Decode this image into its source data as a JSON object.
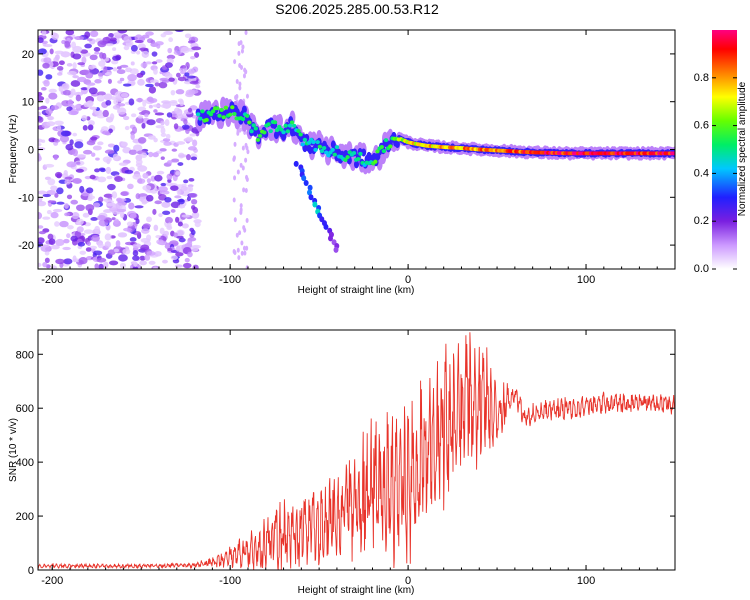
{
  "title": "S206.2025.285.00.53.R12",
  "chart_data": [
    {
      "type": "heatmap",
      "xlabel": "Height of straight line (km)",
      "ylabel": "Frequency (Hz)",
      "xlim": [
        -208,
        150
      ],
      "ylim": [
        -25,
        25
      ],
      "x_ticks": [
        "-200",
        "-100",
        "0",
        "100"
      ],
      "x_tick_values": [
        -200,
        -100,
        0,
        100
      ],
      "y_ticks": [
        "-20",
        "-10",
        "0",
        "10",
        "20"
      ],
      "y_tick_values": [
        -20,
        -10,
        0,
        10,
        20
      ],
      "colorbar": {
        "label": "Normalized spectral amplitude",
        "range": [
          0,
          1
        ],
        "ticks": [
          "0.0",
          "0.2",
          "0.4",
          "0.6",
          "0.8"
        ],
        "tick_values": [
          0,
          0.2,
          0.4,
          0.6,
          0.8
        ],
        "colors": [
          "#ffffff",
          "#cc99ff",
          "#7a1fe0",
          "#2020ff",
          "#00c8ff",
          "#00ee66",
          "#66ff00",
          "#ffff00",
          "#ff8000",
          "#ff0000",
          "#ff0080"
        ]
      },
      "ridge": [
        {
          "x": -118,
          "f": 7,
          "a": 0.5
        },
        {
          "x": -110,
          "f": 7.5,
          "a": 0.55
        },
        {
          "x": -100,
          "f": 8,
          "a": 0.55
        },
        {
          "x": -92,
          "f": 7,
          "a": 0.5
        },
        {
          "x": -85,
          "f": 3,
          "a": 0.55
        },
        {
          "x": -78,
          "f": 5,
          "a": 0.5
        },
        {
          "x": -70,
          "f": 4,
          "a": 0.45
        },
        {
          "x": -65,
          "f": 5,
          "a": 0.5
        },
        {
          "x": -58,
          "f": 1,
          "a": 0.45
        },
        {
          "x": -50,
          "f": 1,
          "a": 0.5
        },
        {
          "x": -45,
          "f": 0,
          "a": 0.45
        },
        {
          "x": -38,
          "f": -1,
          "a": 0.45
        },
        {
          "x": -32,
          "f": -1.5,
          "a": 0.5
        },
        {
          "x": -25,
          "f": -2,
          "a": 0.45
        },
        {
          "x": -18,
          "f": -2,
          "a": 0.55
        },
        {
          "x": -12,
          "f": 1,
          "a": 0.5
        },
        {
          "x": -6,
          "f": 2.5,
          "a": 0.6
        },
        {
          "x": 0,
          "f": 1.5,
          "a": 0.7
        },
        {
          "x": 10,
          "f": 0.8,
          "a": 0.75
        },
        {
          "x": 20,
          "f": 0.5,
          "a": 0.75
        },
        {
          "x": 30,
          "f": 0.3,
          "a": 0.8
        },
        {
          "x": 40,
          "f": 0,
          "a": 0.8
        },
        {
          "x": 55,
          "f": -0.3,
          "a": 0.85
        },
        {
          "x": 70,
          "f": -0.6,
          "a": 0.9
        },
        {
          "x": 90,
          "f": -0.8,
          "a": 0.95
        },
        {
          "x": 110,
          "f": -0.8,
          "a": 0.95
        },
        {
          "x": 130,
          "f": -0.8,
          "a": 0.95
        },
        {
          "x": 150,
          "f": -0.8,
          "a": 0.95
        }
      ],
      "branch": [
        {
          "x": -62,
          "f": -3,
          "a": 0.35
        },
        {
          "x": -58,
          "f": -6,
          "a": 0.35
        },
        {
          "x": -54,
          "f": -10,
          "a": 0.4
        },
        {
          "x": -50,
          "f": -13,
          "a": 0.45
        },
        {
          "x": -45,
          "f": -17,
          "a": 0.25
        },
        {
          "x": -40,
          "f": -21,
          "a": 0.2
        }
      ],
      "noise_region": [
        -208,
        -118
      ]
    },
    {
      "type": "line",
      "xlabel": "Height of straight line (km)",
      "ylabel": "SNR (10 * v/v)",
      "xlim": [
        -208,
        150
      ],
      "ylim": [
        0,
        890
      ],
      "x_ticks": [
        "-200",
        "-100",
        "0",
        "100"
      ],
      "x_tick_values": [
        -200,
        -100,
        0,
        100
      ],
      "y_ticks": [
        "0",
        "200",
        "400",
        "600",
        "800"
      ],
      "y_tick_values": [
        0,
        200,
        400,
        600,
        800
      ],
      "color": "#e8332a",
      "envelope": [
        {
          "x": -208,
          "mean": 15,
          "amp": 8
        },
        {
          "x": -150,
          "mean": 15,
          "amp": 8
        },
        {
          "x": -120,
          "mean": 18,
          "amp": 10
        },
        {
          "x": -105,
          "mean": 35,
          "amp": 30
        },
        {
          "x": -90,
          "mean": 70,
          "amp": 80
        },
        {
          "x": -75,
          "mean": 120,
          "amp": 150
        },
        {
          "x": -60,
          "mean": 150,
          "amp": 140
        },
        {
          "x": -40,
          "mean": 200,
          "amp": 190
        },
        {
          "x": -30,
          "mean": 240,
          "amp": 230
        },
        {
          "x": -20,
          "mean": 300,
          "amp": 300
        },
        {
          "x": -10,
          "mean": 300,
          "amp": 300
        },
        {
          "x": 0,
          "mean": 320,
          "amp": 320
        },
        {
          "x": 10,
          "mean": 420,
          "amp": 330
        },
        {
          "x": 20,
          "mean": 520,
          "amp": 330
        },
        {
          "x": 30,
          "mean": 620,
          "amp": 300
        },
        {
          "x": 38,
          "mean": 620,
          "amp": 260
        },
        {
          "x": 45,
          "mean": 640,
          "amp": 230
        },
        {
          "x": 50,
          "mean": 560,
          "amp": 140
        },
        {
          "x": 55,
          "mean": 620,
          "amp": 80
        },
        {
          "x": 60,
          "mean": 650,
          "amp": 50
        },
        {
          "x": 65,
          "mean": 560,
          "amp": 50
        },
        {
          "x": 75,
          "mean": 590,
          "amp": 40
        },
        {
          "x": 90,
          "mean": 600,
          "amp": 45
        },
        {
          "x": 110,
          "mean": 620,
          "amp": 45
        },
        {
          "x": 130,
          "mean": 620,
          "amp": 35
        },
        {
          "x": 150,
          "mean": 615,
          "amp": 40
        }
      ]
    }
  ]
}
